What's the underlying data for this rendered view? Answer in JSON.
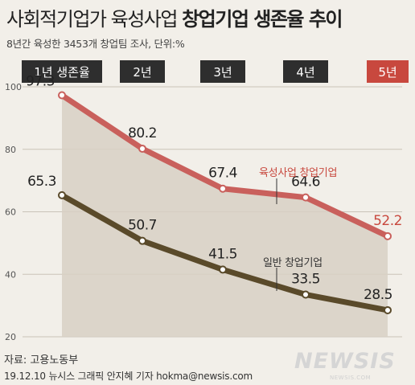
{
  "title": {
    "normal": "사회적기업가 육성사업",
    "bold": "창업기업 생존율 추이"
  },
  "subtitle": "8년간 육성한 3453개 창업팀 조사, 단위:%",
  "source": "자료: 고용노동부",
  "credit": "19.12.10  뉴시스 그래픽 안지혜 기자 hokma@newsis.com",
  "watermark": "NEWSIS",
  "watermark_sub": "NEWSIS.COM",
  "colors": {
    "highlight": "#c8483e",
    "dark": "#5a4a2a",
    "fill": "#d8d0c4",
    "box_dark": "#2e2e2e"
  },
  "chart_data": {
    "type": "line",
    "categories": [
      "1년 생존율",
      "2년",
      "3년",
      "4년",
      "5년"
    ],
    "ylim": [
      20,
      100
    ],
    "yticks": [
      20,
      40,
      60,
      80,
      100
    ],
    "series": [
      {
        "name": "육성사업 창업기업",
        "values": [
          97.3,
          80.2,
          67.4,
          64.6,
          52.2
        ],
        "labels": [
          "97.3",
          "80.2",
          "67.4",
          "64.6",
          "52.2"
        ],
        "color": "#c9605c"
      },
      {
        "name": "일반 창업기업",
        "values": [
          65.3,
          50.7,
          41.5,
          33.5,
          28.5
        ],
        "labels": [
          "65.3",
          "50.7",
          "41.5",
          "33.5",
          "28.5"
        ],
        "color": "#5a4a2a"
      }
    ],
    "highlighted_category_index": 4
  }
}
